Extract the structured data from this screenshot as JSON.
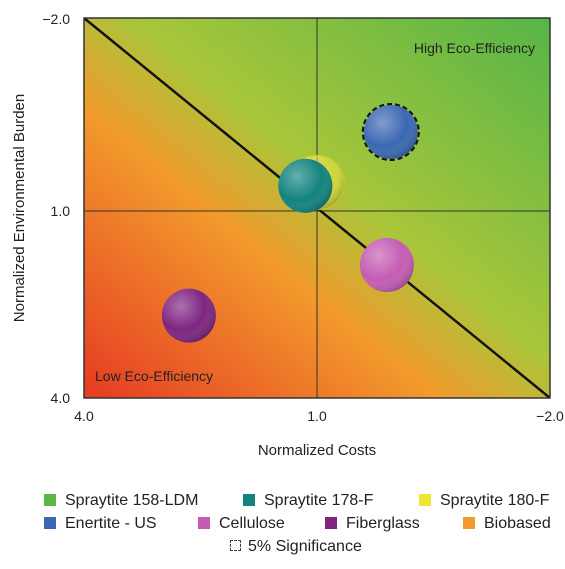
{
  "chart_data": {
    "type": "scatter",
    "subtype": "bubble",
    "title": "",
    "xlabel": "Normalized Costs",
    "ylabel": "Normalized Environmental Burden",
    "xlim": [
      4.0,
      -2.0
    ],
    "ylim": [
      4.0,
      -2.0
    ],
    "x_ticks": [
      "4.0",
      "1.0",
      "−2.0"
    ],
    "y_ticks": [
      "−2.0",
      "1.0",
      "4.0"
    ],
    "x_reversed": true,
    "y_reversed": true,
    "grid": "center crosshair at (1.0, 1.0)",
    "diagonal_line": true,
    "background": "gradient from red (bottom-left) to green (top-right)",
    "annotations": [
      "High Eco-Efficiency",
      "Low Eco-Efficiency"
    ],
    "series": [
      {
        "name": "Spraytite 158-LDM",
        "color": "#5bb747",
        "x": 1.15,
        "y": 0.65,
        "significance_ring": false
      },
      {
        "name": "Spraytite 178-F",
        "color": "#13837e",
        "x": 1.15,
        "y": 0.65,
        "significance_ring": false
      },
      {
        "name": "Spraytite 180-F",
        "color": "#ebe535",
        "x": 1.0,
        "y": 0.6,
        "significance_ring": false
      },
      {
        "name": "Enertite - US",
        "color": "#3b68b3",
        "x": 0.05,
        "y": -0.2,
        "significance_ring": true
      },
      {
        "name": "Cellulose",
        "color": "#c45cb4",
        "x": 0.1,
        "y": 1.9,
        "significance_ring": false
      },
      {
        "name": "Fiberglass",
        "color": "#7d2580",
        "x": 2.65,
        "y": 2.7,
        "significance_ring": false
      },
      {
        "name": "Biobased",
        "color": "#f29a2e",
        "x": null,
        "y": null,
        "significance_ring": false
      }
    ],
    "legend_position": "bottom",
    "legend_extra": "5% Significance"
  }
}
